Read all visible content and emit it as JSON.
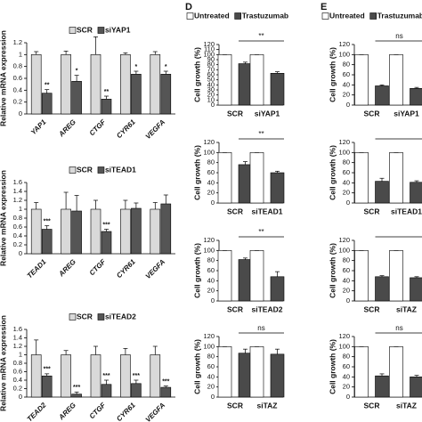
{
  "chart_data": [
    {
      "type": "bar",
      "ylabel": "Relative mRNA expression",
      "categories": [
        "YAP1",
        "AREG",
        "CTGF",
        "CYR61",
        "VEGFA"
      ],
      "series": [
        {
          "name": "SCR",
          "color": "#d9d9d9",
          "values": [
            1.0,
            1.0,
            1.0,
            1.0,
            1.0
          ],
          "errors": [
            0.05,
            0.06,
            0.3,
            0.03,
            0.05
          ]
        },
        {
          "name": "siYAP1",
          "color": "#555555",
          "values": [
            0.35,
            0.55,
            0.25,
            0.67,
            0.67
          ],
          "errors": [
            0.06,
            0.1,
            0.05,
            0.05,
            0.05
          ]
        }
      ],
      "significance": [
        "**",
        "*",
        "**",
        "*",
        "*"
      ],
      "ylim": [
        0,
        1.2
      ],
      "yticks": [
        0,
        0.2,
        0.4,
        0.6,
        0.8,
        1,
        1.2
      ]
    },
    {
      "type": "bar",
      "ylabel": "Relative mRNA expression",
      "categories": [
        "TEAD1",
        "AREG",
        "CTGF",
        "CYR61",
        "VEGFA"
      ],
      "series": [
        {
          "name": "SCR",
          "color": "#d9d9d9",
          "values": [
            1.0,
            1.0,
            1.0,
            1.0,
            1.0
          ],
          "errors": [
            0.15,
            0.38,
            0.2,
            0.2,
            0.15
          ]
        },
        {
          "name": "siTEAD1",
          "color": "#555555",
          "values": [
            0.55,
            0.96,
            0.5,
            1.02,
            1.12
          ],
          "errors": [
            0.08,
            0.35,
            0.05,
            0.12,
            0.2
          ]
        }
      ],
      "significance": [
        "***",
        null,
        "***",
        null,
        null
      ],
      "ylim": [
        0,
        1.6
      ],
      "yticks": [
        0,
        0.2,
        0.4,
        0.6,
        0.8,
        1,
        1.2,
        1.4,
        1.6
      ]
    },
    {
      "type": "bar",
      "ylabel": "Relative mRNA expression",
      "categories": [
        "TEAD2",
        "AREG",
        "CTGF",
        "CYR61",
        "VEGFA"
      ],
      "series": [
        {
          "name": "SCR",
          "color": "#d9d9d9",
          "values": [
            1.0,
            1.0,
            1.0,
            1.0,
            1.0
          ],
          "errors": [
            0.35,
            0.1,
            0.2,
            0.15,
            0.2
          ]
        },
        {
          "name": "siTEAD2",
          "color": "#555555",
          "values": [
            0.5,
            0.07,
            0.3,
            0.32,
            0.23
          ],
          "errors": [
            0.05,
            0.05,
            0.1,
            0.08,
            0.03
          ]
        }
      ],
      "significance": [
        "***",
        "***",
        "***",
        "***",
        "***"
      ],
      "ylim": [
        0,
        1.6
      ],
      "yticks": [
        0,
        0.2,
        0.4,
        0.6,
        0.8,
        1,
        1.2,
        1.4,
        1.6
      ]
    },
    {
      "type": "bar",
      "panel": "D",
      "ylabel": "Cell growth (%)",
      "categories": [
        "SCR",
        "siYAP1"
      ],
      "series": [
        {
          "name": "Untreated",
          "color": "#ffffff",
          "values": [
            100,
            100
          ],
          "errors": [
            0,
            0
          ]
        },
        {
          "name": "Trastuzumab",
          "color": "#4a4a4a",
          "values": [
            82,
            63
          ],
          "errors": [
            3,
            3
          ]
        }
      ],
      "bracket": "**",
      "ylim": [
        0,
        120
      ],
      "yticks": [
        0,
        10,
        20,
        30,
        40,
        50,
        60,
        70,
        80,
        90,
        100,
        110,
        120
      ]
    },
    {
      "type": "bar",
      "ylabel": "Cell growth (%)",
      "categories": [
        "SCR",
        "siTEAD1"
      ],
      "series": [
        {
          "color": "#ffffff",
          "values": [
            100,
            100
          ],
          "errors": [
            0,
            0
          ]
        },
        {
          "color": "#4a4a4a",
          "values": [
            76,
            60
          ],
          "errors": [
            6,
            3
          ]
        }
      ],
      "bracket": "**",
      "ylim": [
        0,
        120
      ],
      "yticks": [
        0,
        20,
        40,
        60,
        80,
        100,
        120
      ]
    },
    {
      "type": "bar",
      "ylabel": "Cell growth (%)",
      "categories": [
        "SCR",
        "siTEAD2"
      ],
      "series": [
        {
          "color": "#ffffff",
          "values": [
            100,
            100
          ],
          "errors": [
            0,
            0
          ]
        },
        {
          "color": "#4a4a4a",
          "values": [
            82,
            48
          ],
          "errors": [
            3,
            10
          ]
        }
      ],
      "bracket": "**",
      "ylim": [
        0,
        120
      ],
      "yticks": [
        0,
        20,
        40,
        60,
        80,
        100,
        120
      ]
    },
    {
      "type": "bar",
      "ylabel": "Cell growth (%)",
      "categories": [
        "SCR",
        "siTAZ"
      ],
      "series": [
        {
          "color": "#ffffff",
          "values": [
            100,
            100
          ],
          "errors": [
            0,
            0
          ]
        },
        {
          "color": "#4a4a4a",
          "values": [
            87,
            85
          ],
          "errors": [
            8,
            10
          ]
        }
      ],
      "bracket": "ns",
      "ylim": [
        0,
        120
      ],
      "yticks": [
        0,
        20,
        40,
        60,
        80,
        100,
        120
      ]
    },
    {
      "type": "bar",
      "panel": "E",
      "ylabel": "Cell growth (%)",
      "categories": [
        "SCR",
        "siYAP1"
      ],
      "series": [
        {
          "name": "Untreated",
          "color": "#ffffff",
          "values": [
            100,
            100
          ],
          "errors": [
            0,
            0
          ]
        },
        {
          "name": "Trastuzumab",
          "color": "#4a4a4a",
          "values": [
            38,
            33
          ],
          "errors": [
            2,
            2
          ]
        }
      ],
      "bracket": "ns",
      "ylim": [
        0,
        120
      ],
      "yticks": [
        0,
        20,
        40,
        60,
        80,
        100,
        120
      ]
    },
    {
      "type": "bar",
      "ylabel": "Cell growth (%)",
      "categories": [
        "SCR",
        "siTEAD1"
      ],
      "series": [
        {
          "color": "#ffffff",
          "values": [
            100,
            100
          ],
          "errors": [
            0,
            0
          ]
        },
        {
          "color": "#4a4a4a",
          "values": [
            43,
            41
          ],
          "errors": [
            6,
            3
          ]
        }
      ],
      "bracket": null,
      "ylim": [
        0,
        120
      ],
      "yticks": [
        0,
        20,
        40,
        60,
        80,
        100,
        120
      ]
    },
    {
      "type": "bar",
      "ylabel": "Cell growth (%)",
      "categories": [
        "SCR",
        "siTAZ"
      ],
      "series": [
        {
          "color": "#ffffff",
          "values": [
            100,
            100
          ],
          "errors": [
            0,
            0
          ]
        },
        {
          "color": "#4a4a4a",
          "values": [
            48,
            46
          ],
          "errors": [
            2,
            2
          ]
        }
      ],
      "bracket": null,
      "ylim": [
        0,
        120
      ],
      "yticks": [
        0,
        20,
        40,
        60,
        80,
        100,
        120
      ]
    },
    {
      "type": "bar",
      "ylabel": "Cell growth (%)",
      "categories": [
        "SCR",
        "siTAZ"
      ],
      "series": [
        {
          "color": "#ffffff",
          "values": [
            100,
            100
          ],
          "errors": [
            0,
            0
          ]
        },
        {
          "color": "#4a4a4a",
          "values": [
            42,
            40
          ],
          "errors": [
            4,
            3
          ]
        }
      ],
      "bracket": "ns",
      "ylim": [
        0,
        120
      ],
      "yticks": [
        0,
        20,
        40,
        60,
        80,
        100,
        120
      ]
    }
  ]
}
